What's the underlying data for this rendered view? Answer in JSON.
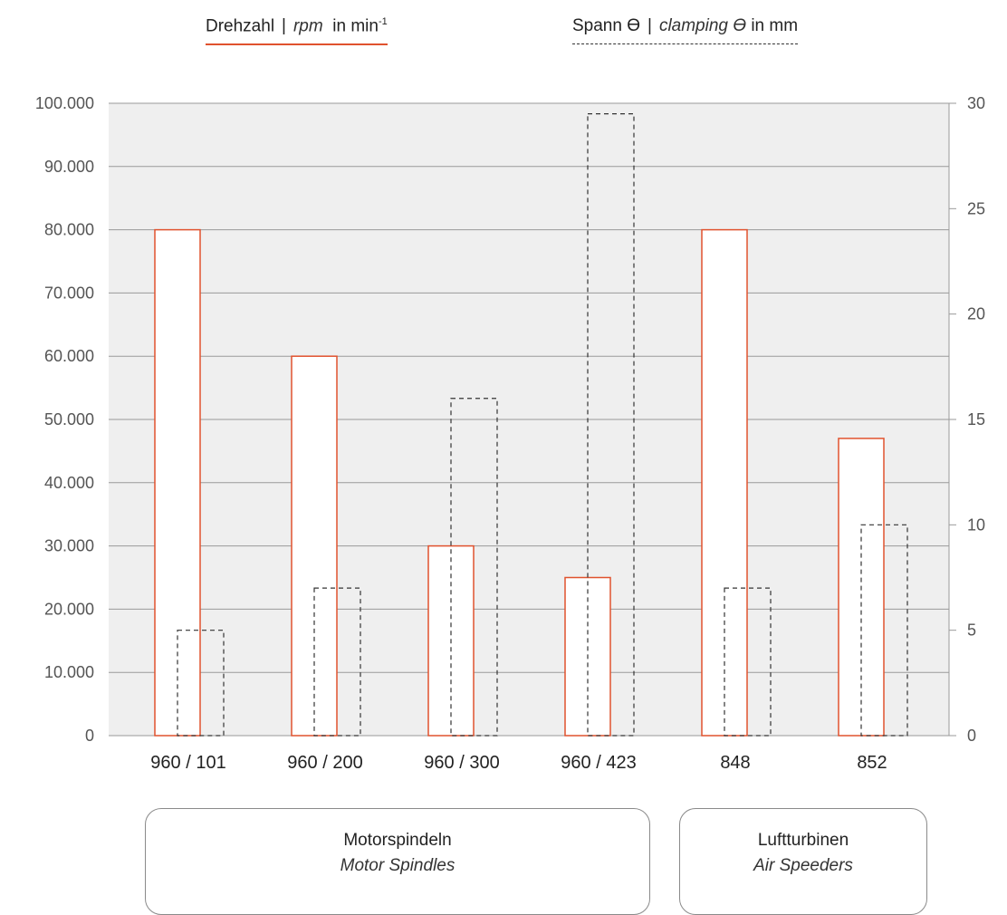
{
  "legend": {
    "rpm": {
      "de": "Drehzahl",
      "sep": "|",
      "en": "rpm",
      "unit": "in min",
      "unit_sup": "-1"
    },
    "clamp": {
      "de": "Spann ϴ",
      "sep": "|",
      "en": "clamping ϴ",
      "unit": "in mm"
    }
  },
  "groups": [
    {
      "de": "Motorspindeln",
      "en": "Motor Spindles"
    },
    {
      "de": "Luftturbinen",
      "en": "Air Speeders"
    }
  ],
  "colors": {
    "plot_bg": "#efefef",
    "grid": "#9a9a9a",
    "rpm_bar": "#e0522e",
    "clamp_bar": "#333333",
    "tick_text": "#555555"
  },
  "chart_data": {
    "type": "bar",
    "categories": [
      "960 / 101",
      "960 / 200",
      "960 / 300",
      "960 / 423",
      "848",
      "852"
    ],
    "series": [
      {
        "name": "Drehzahl | rpm in min-1",
        "axis": "left",
        "style": "solid",
        "values": [
          80000,
          60000,
          30000,
          25000,
          80000,
          47000
        ]
      },
      {
        "name": "Spann ϴ | clamping ϴ in mm",
        "axis": "right",
        "style": "dashed",
        "values": [
          5,
          7,
          16,
          29.5,
          7,
          10
        ]
      }
    ],
    "y_left": {
      "ylim": [
        0,
        100000
      ],
      "ticks": [
        0,
        10000,
        20000,
        30000,
        40000,
        50000,
        60000,
        70000,
        80000,
        90000,
        100000
      ],
      "tick_labels": [
        "0",
        "10.000",
        "20.000",
        "30.000",
        "40.000",
        "50.000",
        "60.000",
        "70.000",
        "80.000",
        "90.000",
        "100.000"
      ]
    },
    "y_right": {
      "ylim": [
        0,
        30
      ],
      "ticks": [
        0,
        5,
        10,
        15,
        20,
        25,
        30
      ],
      "tick_labels": [
        "0",
        "5",
        "10",
        "15",
        "20",
        "25",
        "30"
      ]
    },
    "grid": true
  }
}
